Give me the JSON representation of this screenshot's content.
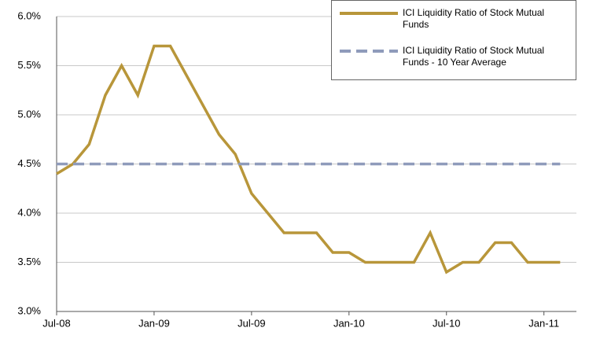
{
  "chart_data": {
    "type": "line",
    "categories": [
      "Jul-08",
      null,
      null,
      null,
      null,
      null,
      "Jan-09",
      null,
      null,
      null,
      null,
      null,
      "Jul-09",
      null,
      null,
      null,
      null,
      null,
      "Jan-10",
      null,
      null,
      null,
      null,
      null,
      "Jul-10",
      null,
      null,
      null,
      null,
      null,
      "Jan-11",
      null
    ],
    "series": [
      {
        "name": "ICI Liquidity Ratio of Stock Mutual Funds",
        "color": "#b8963a",
        "dashed": false,
        "values": [
          4.4,
          4.5,
          4.7,
          5.2,
          5.5,
          5.2,
          5.7,
          5.7,
          5.4,
          5.1,
          4.8,
          4.6,
          4.2,
          4.0,
          3.8,
          3.8,
          3.8,
          3.6,
          3.6,
          3.5,
          3.5,
          3.5,
          3.5,
          3.8,
          3.4,
          3.5,
          3.5,
          3.7,
          3.7,
          3.5,
          3.5,
          3.5
        ]
      },
      {
        "name": "ICI Liquidity Ratio of Stock Mutual Funds - 10 Year Average",
        "color": "#8f9bbb",
        "dashed": true,
        "values": [
          4.5,
          4.5,
          4.5,
          4.5,
          4.5,
          4.5,
          4.5,
          4.5,
          4.5,
          4.5,
          4.5,
          4.5,
          4.5,
          4.5,
          4.5,
          4.5,
          4.5,
          4.5,
          4.5,
          4.5,
          4.5,
          4.5,
          4.5,
          4.5,
          4.5,
          4.5,
          4.5,
          4.5,
          4.5,
          4.5,
          4.5,
          4.5
        ]
      }
    ],
    "ylim": [
      3,
      6
    ],
    "yticks": [
      {
        "value": 3,
        "label": "3.0%"
      },
      {
        "value": 3.5,
        "label": "3.5%"
      },
      {
        "value": 4,
        "label": "4.0%"
      },
      {
        "value": 4.5,
        "label": "4.5%"
      },
      {
        "value": 5,
        "label": "5.0%"
      },
      {
        "value": 5.5,
        "label": "5.5%"
      },
      {
        "value": 6,
        "label": "6.0%"
      }
    ],
    "grid": true,
    "legend": "top-right"
  }
}
